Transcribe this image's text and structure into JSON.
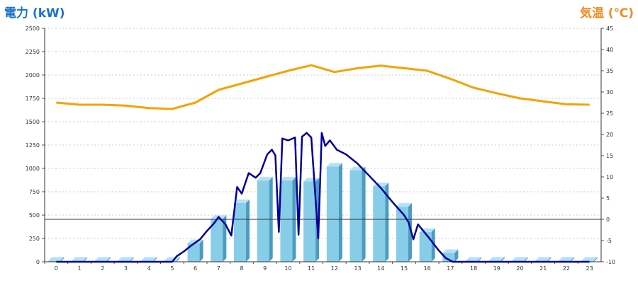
{
  "chart_data": {
    "type": "bar",
    "left_title": "電力 (kW)",
    "right_title": "気温 (℃)",
    "categories": [
      "0",
      "1",
      "2",
      "3",
      "4",
      "5",
      "6",
      "7",
      "8",
      "9",
      "10",
      "11",
      "12",
      "13",
      "14",
      "15",
      "16",
      "17",
      "18",
      "19",
      "20",
      "21",
      "22",
      "23"
    ],
    "left_axis": {
      "min": 0,
      "max": 2500,
      "ticks": [
        0,
        250,
        500,
        750,
        1000,
        1250,
        1500,
        1750,
        2000,
        2250,
        2500
      ]
    },
    "right_axis": {
      "min": -10,
      "max": 45,
      "ticks": [
        -10,
        -5,
        0,
        5,
        10,
        15,
        20,
        25,
        30,
        35,
        40,
        45
      ]
    },
    "bars": {
      "axis": "left",
      "color": "#87cde8",
      "values": [
        12,
        12,
        12,
        12,
        12,
        12,
        200,
        460,
        630,
        870,
        870,
        860,
        1020,
        980,
        810,
        590,
        320,
        95,
        12,
        12,
        12,
        12,
        12,
        12
      ]
    },
    "power_line": {
      "axis": "left",
      "color": "#000099",
      "points": [
        [
          0,
          0
        ],
        [
          1,
          0
        ],
        [
          2,
          0
        ],
        [
          3,
          0
        ],
        [
          4,
          0
        ],
        [
          5,
          0
        ],
        [
          5.2,
          60
        ],
        [
          5.5,
          110
        ],
        [
          5.8,
          170
        ],
        [
          6.2,
          240
        ],
        [
          6.5,
          330
        ],
        [
          6.8,
          410
        ],
        [
          7.0,
          480
        ],
        [
          7.3,
          400
        ],
        [
          7.55,
          280
        ],
        [
          7.8,
          800
        ],
        [
          8.0,
          730
        ],
        [
          8.3,
          950
        ],
        [
          8.6,
          900
        ],
        [
          8.8,
          950
        ],
        [
          9.1,
          1150
        ],
        [
          9.3,
          1200
        ],
        [
          9.45,
          1140
        ],
        [
          9.6,
          320
        ],
        [
          9.75,
          1320
        ],
        [
          10.0,
          1300
        ],
        [
          10.3,
          1330
        ],
        [
          10.45,
          290
        ],
        [
          10.6,
          1340
        ],
        [
          10.8,
          1380
        ],
        [
          11.0,
          1330
        ],
        [
          11.3,
          250
        ],
        [
          11.45,
          1380
        ],
        [
          11.6,
          1240
        ],
        [
          11.8,
          1300
        ],
        [
          12.1,
          1200
        ],
        [
          12.5,
          1150
        ],
        [
          13.0,
          1050
        ],
        [
          13.5,
          920
        ],
        [
          14.0,
          790
        ],
        [
          14.5,
          640
        ],
        [
          15.0,
          500
        ],
        [
          15.2,
          420
        ],
        [
          15.4,
          240
        ],
        [
          15.6,
          400
        ],
        [
          16.0,
          280
        ],
        [
          16.5,
          120
        ],
        [
          16.8,
          40
        ],
        [
          17.1,
          0
        ],
        [
          18,
          0
        ],
        [
          19,
          0
        ],
        [
          20,
          0
        ],
        [
          21,
          0
        ],
        [
          22,
          0
        ],
        [
          23,
          0
        ]
      ]
    },
    "temp_line": {
      "axis": "right",
      "color": "#f5a200",
      "values": [
        27.5,
        27.0,
        27.0,
        26.8,
        26.2,
        26.0,
        27.5,
        30.5,
        32.0,
        33.5,
        35.0,
        36.3,
        34.7,
        35.6,
        36.2,
        35.6,
        35.0,
        33.1,
        31.0,
        29.7,
        28.5,
        27.8,
        27.1,
        27.0
      ]
    }
  }
}
